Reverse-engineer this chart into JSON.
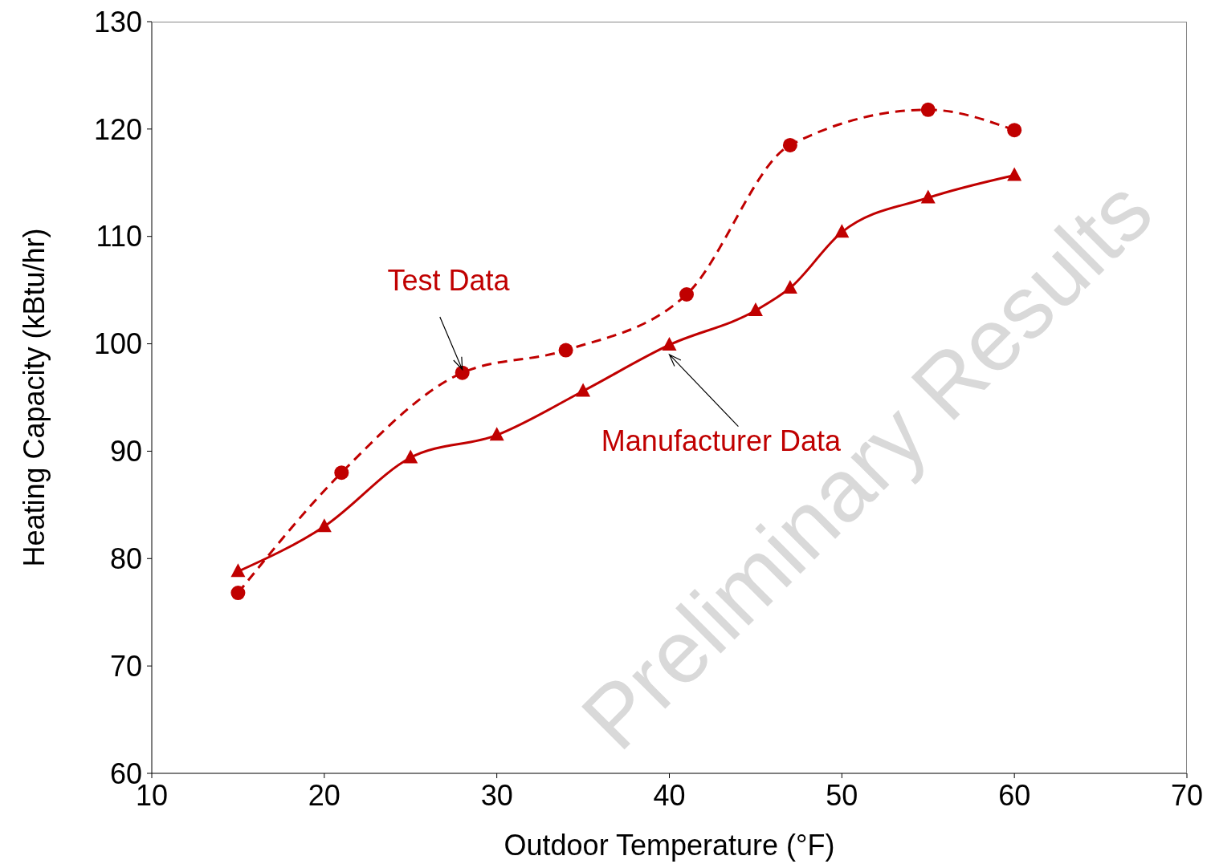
{
  "chart_data": {
    "type": "line",
    "xlabel": "Outdoor Temperature (°F)",
    "ylabel": "Heating Capacity (kBtu/hr)",
    "xlim": [
      10,
      70
    ],
    "xticks": [
      10,
      20,
      30,
      40,
      50,
      60,
      70
    ],
    "ylim": [
      60,
      130
    ],
    "yticks": [
      60,
      70,
      80,
      90,
      100,
      110,
      120,
      130
    ],
    "grid": false,
    "legend": false,
    "series": [
      {
        "name": "Test Data",
        "color": "#c00000",
        "line_style": "dashed",
        "marker": "circle",
        "x": [
          15,
          21,
          28,
          34,
          41,
          47,
          55,
          60
        ],
        "values": [
          76.8,
          88.0,
          97.3,
          99.4,
          104.6,
          118.5,
          121.8,
          119.9
        ]
      },
      {
        "name": "Manufacturer Data",
        "color": "#c00000",
        "line_style": "solid",
        "marker": "triangle",
        "x": [
          15,
          20,
          25,
          30,
          35,
          40,
          45,
          47,
          50,
          55,
          60
        ],
        "values": [
          78.8,
          83.0,
          89.4,
          91.5,
          95.6,
          99.9,
          103.1,
          105.2,
          110.4,
          113.6,
          115.7
        ]
      }
    ],
    "annotations": [
      "Preliminary Results"
    ]
  }
}
